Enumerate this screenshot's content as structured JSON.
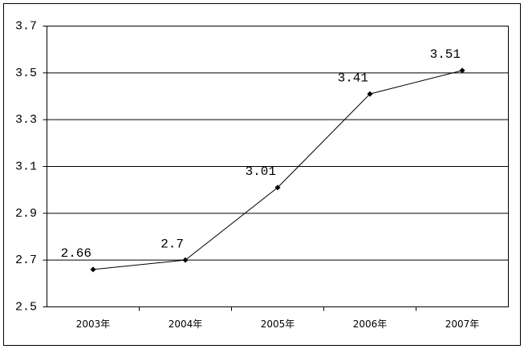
{
  "chart_data": {
    "type": "line",
    "categories": [
      "2003年",
      "2004年",
      "2005年",
      "2006年",
      "2007年"
    ],
    "values": [
      2.66,
      2.7,
      3.01,
      3.41,
      3.51
    ],
    "color": "#000000",
    "ylim": [
      2.5,
      3.7
    ],
    "yticks": [
      2.5,
      2.7,
      2.9,
      3.1,
      3.3,
      3.5,
      3.7
    ],
    "grid": true
  }
}
